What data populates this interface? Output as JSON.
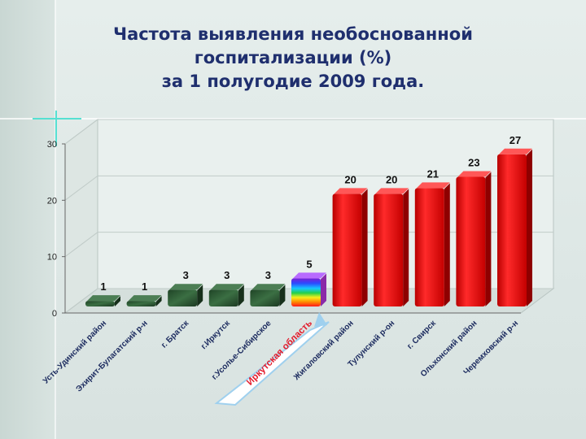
{
  "title": "Частота выявления необоснованной\nгоспитализации (%)\nза  1 полугодие 2009 года.",
  "colors": {
    "green_bar": "#2f5a34",
    "red_bar": "#e81212",
    "region_callout": "#e31b2c",
    "arrow": "#9fd0ee"
  },
  "chart_data": {
    "type": "bar",
    "title": "Частота выявления необоснованной госпитализации (%) за  1 полугодие 2009 года.",
    "xlabel": "",
    "ylabel": "",
    "ylim": [
      0,
      30
    ],
    "yticks": [
      0,
      10,
      20,
      30
    ],
    "grid": true,
    "legend": "none",
    "categories": [
      "Усть-Удинский район",
      "Эхирит-Булагатский р-н",
      "г. Братск",
      "г.Иркутск",
      "г.Усолье-Сибирское",
      "Иркутская область",
      "Жигаловский район",
      "Тулунский р-он",
      "г. Свирск",
      "Ольхонский район",
      "Черемховский р-н"
    ],
    "values": [
      1,
      1,
      3,
      3,
      3,
      5,
      20,
      20,
      21,
      23,
      27
    ],
    "bar_styles": [
      "green",
      "green",
      "green",
      "green",
      "green",
      "rainbow",
      "red",
      "red",
      "red",
      "red",
      "red"
    ],
    "highlight_category": "Иркутская область"
  }
}
